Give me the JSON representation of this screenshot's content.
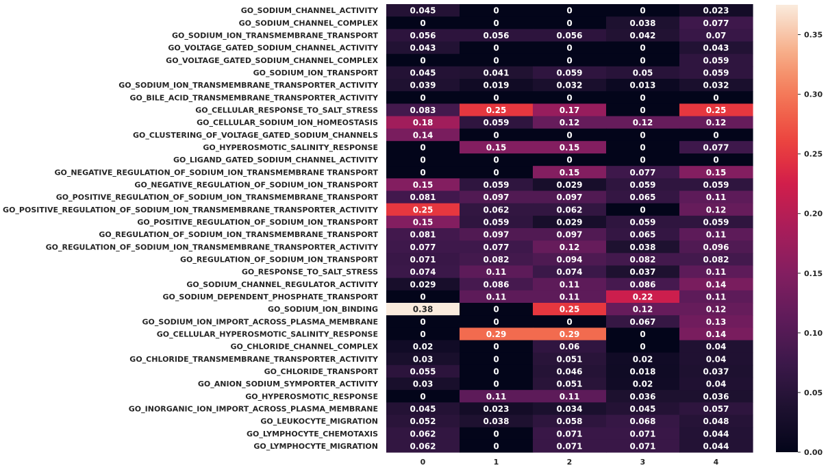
{
  "chart_data": {
    "type": "heatmap",
    "x": [
      "0",
      "1",
      "2",
      "3",
      "4"
    ],
    "y": [
      "GO_SODIUM_CHANNEL_ACTIVITY",
      "GO_SODIUM_CHANNEL_COMPLEX",
      "GO_SODIUM_ION_TRANSMEMBRANE_TRANSPORT",
      "GO_VOLTAGE_GATED_SODIUM_CHANNEL_ACTIVITY",
      "GO_VOLTAGE_GATED_SODIUM_CHANNEL_COMPLEX",
      "GO_SODIUM_ION_TRANSPORT",
      "GO_SODIUM_ION_TRANSMEMBRANE_TRANSPORTER_ACTIVITY",
      "GO_BILE_ACID_TRANSMEMBRANE_TRANSPORTER_ACTIVITY",
      "GO_CELLULAR_RESPONSE_TO_SALT_STRESS",
      "GO_CELLULAR_SODIUM_ION_HOMEOSTASIS",
      "GO_CLUSTERING_OF_VOLTAGE_GATED_SODIUM_CHANNELS",
      "GO_HYPEROSMOTIC_SALINITY_RESPONSE",
      "GO_LIGAND_GATED_SODIUM_CHANNEL_ACTIVITY",
      "GO_NEGATIVE_REGULATION_OF_SODIUM_ION_TRANSMEMBRANE TRANSPORT",
      "GO_NEGATIVE_REGULATION_OF_SODIUM_ION_TRANSPORT",
      "GO_POSITIVE_REGULATION_OF_SODIUM_ION_TRANSMEMBRANE_TRANSPORT",
      "GO_POSITIVE_REGULATION_OF_SODIUM_ION_TRANSMEMBRANE_TRANSPORTER_ACTIVITY",
      "GO_POSITIVE_REGULATION_OF_SODIUM_ION_TRANSPORT",
      "GO_REGULATION_OF_SODIUM_ION_TRANSMEMBRANE_TRANSPORT",
      "GO_REGULATION_OF_SODIUM_ION_TRANSMEMBRANE_TRANSPORTER_ACTIVITY",
      "GO_REGULATION_OF_SODIUM_ION_TRANSPORT",
      "GO_RESPONSE_TO_SALT_STRESS",
      "GO_SODIUM_CHANNEL_REGULATOR_ACTIVITY",
      "GO_SODIUM_DEPENDENT_PHOSPHATE_TRANSPORT",
      "GO_SODIUM_ION_BINDING",
      "GO_SODIUM_ION_IMPORT_ACROSS_PLASMA_MEMBRANE",
      "GO_CELLULAR_HYPEROSMOTIC_SALINITY_RESPONSE",
      "GO_CHLORIDE_CHANNEL_COMPLEX",
      "GO_CHLORIDE_TRANSMEMBRANE_TRANSPORTER_ACTIVITY",
      "GO_CHLORIDE_TRANSPORT",
      "GO_ANION_SODIUM_SYMPORTER_ACTIVITY",
      "GO_HYPEROSMOTIC_RESPONSE",
      "GO_INORGANIC_ION_IMPORT_ACROSS_PLASMA_MEMBRANE",
      "GO_LEUKOCYTE_MIGRATION",
      "GO_LYMPHOCYTE_CHEMOTAXIS",
      "GO_LYMPHOCYTE_MIGRATION"
    ],
    "values": [
      [
        0.045,
        0,
        0,
        0,
        0.023
      ],
      [
        0,
        0,
        0,
        0.038,
        0.077
      ],
      [
        0.056,
        0.056,
        0.056,
        0.042,
        0.07
      ],
      [
        0.043,
        0,
        0,
        0,
        0.043
      ],
      [
        0,
        0,
        0,
        0,
        0.059
      ],
      [
        0.045,
        0.041,
        0.059,
        0.05,
        0.059
      ],
      [
        0.039,
        0.019,
        0.032,
        0.013,
        0.032
      ],
      [
        0,
        0,
        0,
        0,
        0
      ],
      [
        0.083,
        0.25,
        0.17,
        0,
        0.25
      ],
      [
        0.18,
        0.059,
        0.12,
        0.12,
        0.12
      ],
      [
        0.14,
        0,
        0,
        0,
        0
      ],
      [
        0,
        0.15,
        0.15,
        0,
        0.077
      ],
      [
        0,
        0,
        0,
        0,
        0
      ],
      [
        0,
        0,
        0.15,
        0.077,
        0.15
      ],
      [
        0.15,
        0.059,
        0.029,
        0.059,
        0.059
      ],
      [
        0.081,
        0.097,
        0.097,
        0.065,
        0.11
      ],
      [
        0.25,
        0.062,
        0.062,
        0,
        0.12
      ],
      [
        0.15,
        0.059,
        0.029,
        0.059,
        0.059
      ],
      [
        0.081,
        0.097,
        0.097,
        0.065,
        0.11
      ],
      [
        0.077,
        0.077,
        0.12,
        0.038,
        0.096
      ],
      [
        0.071,
        0.082,
        0.094,
        0.082,
        0.082
      ],
      [
        0.074,
        0.11,
        0.074,
        0.037,
        0.11
      ],
      [
        0.029,
        0.086,
        0.11,
        0.086,
        0.14
      ],
      [
        0,
        0.11,
        0.11,
        0.22,
        0.11
      ],
      [
        0.38,
        0,
        0.25,
        0.12,
        0.12
      ],
      [
        0,
        0,
        0,
        0.067,
        0.13
      ],
      [
        0,
        0.29,
        0.29,
        0,
        0.14
      ],
      [
        0.02,
        0,
        0.06,
        0,
        0.04
      ],
      [
        0.03,
        0,
        0.051,
        0.02,
        0.04
      ],
      [
        0.055,
        0,
        0.046,
        0.018,
        0.037
      ],
      [
        0.03,
        0,
        0.051,
        0.02,
        0.04
      ],
      [
        0,
        0.11,
        0.11,
        0.036,
        0.036
      ],
      [
        0.045,
        0.023,
        0.034,
        0.045,
        0.057
      ],
      [
        0.052,
        0.038,
        0.058,
        0.068,
        0.048
      ],
      [
        0.062,
        0,
        0.071,
        0.071,
        0.044
      ],
      [
        0.062,
        0,
        0.071,
        0.071,
        0.044
      ]
    ],
    "colorbar": {
      "colormap": "rocket",
      "range": [
        0,
        0.375
      ],
      "ticks": [
        "0.00",
        "0.05",
        "0.10",
        "0.15",
        "0.20",
        "0.25",
        "0.30",
        "0.35"
      ]
    },
    "annotations": "cell values printed in each cell",
    "grid": false,
    "title": "",
    "xlabel": "",
    "ylabel": ""
  }
}
